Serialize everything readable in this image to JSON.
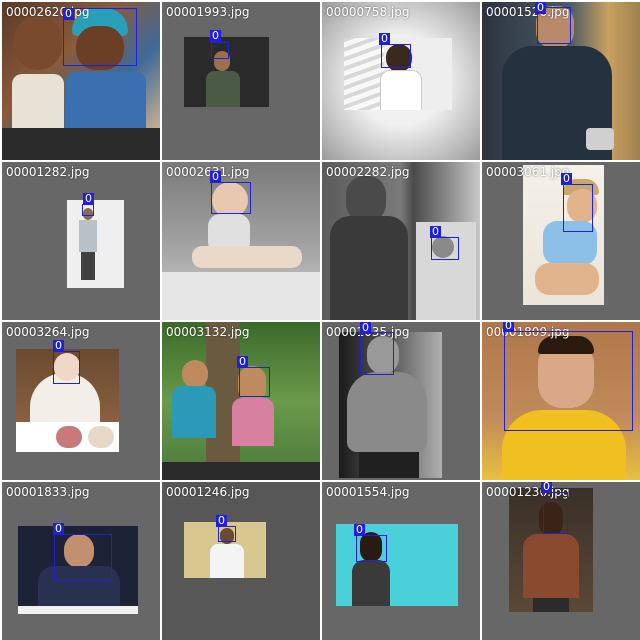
{
  "grid": {
    "tiles": [
      {
        "filename": "00002620.jpg",
        "box_label": "0"
      },
      {
        "filename": "00001993.jpg",
        "box_label": "0"
      },
      {
        "filename": "00000758.jpg",
        "box_label": "0"
      },
      {
        "filename": "00001526.jpg",
        "box_label": "0"
      },
      {
        "filename": "00001282.jpg",
        "box_label": "0"
      },
      {
        "filename": "00002631.jpg",
        "box_label": "0"
      },
      {
        "filename": "00002282.jpg",
        "box_label": "0"
      },
      {
        "filename": "00003061.jpg",
        "box_label": "0"
      },
      {
        "filename": "00003264.jpg",
        "box_label": "0"
      },
      {
        "filename": "00003132.jpg",
        "box_label": "0",
        "box_label_2": "0"
      },
      {
        "filename": "00001035.jpg",
        "box_label": "0"
      },
      {
        "filename": "00001809.jpg",
        "box_label": "0"
      },
      {
        "filename": "00001833.jpg",
        "box_label": "0"
      },
      {
        "filename": "00001246.jpg",
        "box_label": "0"
      },
      {
        "filename": "00001554.jpg",
        "box_label": "0"
      },
      {
        "filename": "00001236.jpg",
        "box_label": "0"
      }
    ]
  },
  "colors": {
    "tile_background": "#676767",
    "box_border": "#2020d8",
    "label_background": "#2020d8",
    "filename_text": "#ffffff"
  }
}
